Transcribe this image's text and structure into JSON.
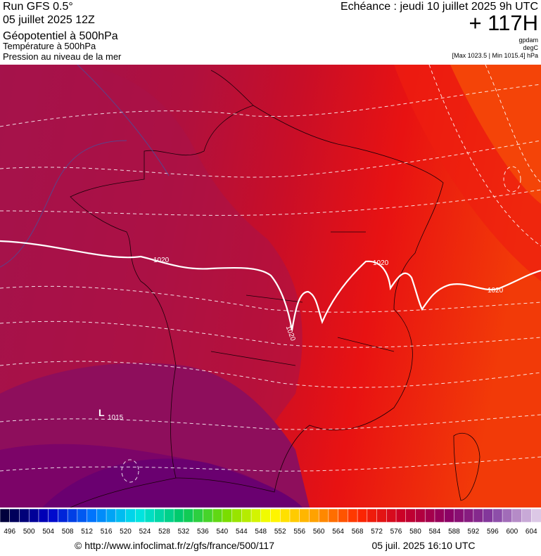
{
  "header": {
    "run": "Run GFS 0.5°",
    "date": "05 juillet 2025 12Z",
    "layer1": "Géopotentiel à 500hPa",
    "layer2": "Température à 500hPa",
    "layer3": "Pression au niveau de la mer",
    "forecast": "Echéance : jeudi 10 juillet 2025 9h UTC",
    "lead": "+ 117H",
    "unit1": "gpdam",
    "unit2": "degC",
    "range": "[Max 1023.5 | Min 1015.4] hPa"
  },
  "map": {
    "isobar_labels": [
      "1020",
      "1020",
      "1020",
      "1020"
    ],
    "low": {
      "symbol": "L",
      "label": "1015"
    }
  },
  "colorbar": {
    "labels": [
      496,
      500,
      504,
      508,
      512,
      516,
      520,
      524,
      528,
      532,
      536,
      540,
      544,
      548,
      552,
      556,
      560,
      564,
      568,
      572,
      576,
      580,
      584,
      588,
      592,
      596,
      600,
      604
    ]
  },
  "footer": {
    "source": "© http://www.infoclimat.fr/z/gfs/france/500/117",
    "generated": "05 juil. 2025 16:10 UTC"
  }
}
